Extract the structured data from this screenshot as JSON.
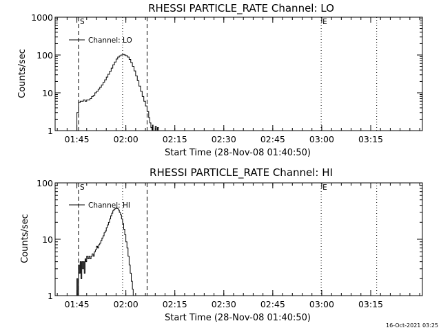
{
  "footer_timestamp": "16-Oct-2021 03:25",
  "chart_data": [
    {
      "type": "line",
      "title": "RHESSI PARTICLE_RATE Channel: LO",
      "xlabel": "Start Time (28-Nov-08 01:40:50)",
      "ylabel": "Counts/sec",
      "yscale": "log",
      "ylim": [
        1,
        1000
      ],
      "yticks": [
        "1",
        "10",
        "100",
        "1000"
      ],
      "xlim_minutes": [
        -2.5,
        110.0
      ],
      "xticks": [
        "01:45",
        "02:00",
        "02:15",
        "02:30",
        "02:45",
        "03:00",
        "03:15"
      ],
      "legend": "Channel: LO",
      "markers": [
        {
          "label": "S",
          "time": "01:45:30",
          "style": "dashed"
        },
        {
          "label": "",
          "time": "02:06:30",
          "style": "dashed"
        },
        {
          "label": "",
          "time": "01:59:00",
          "style": "dotted"
        },
        {
          "label": "E",
          "time": "02:59:50",
          "style": "dotted"
        },
        {
          "label": "",
          "time": "03:16:50",
          "style": "dotted"
        }
      ],
      "series": [
        {
          "name": "Channel: LO",
          "x": [
            "01:44:45",
            "01:45:00",
            "01:45:30",
            "01:46:00",
            "01:46:30",
            "01:47:00",
            "01:47:30",
            "01:48:00",
            "01:48:30",
            "01:49:00",
            "01:49:30",
            "01:50:00",
            "01:50:30",
            "01:51:00",
            "01:51:30",
            "01:52:00",
            "01:52:30",
            "01:53:00",
            "01:53:30",
            "01:54:00",
            "01:54:30",
            "01:55:00",
            "01:55:30",
            "01:56:00",
            "01:56:30",
            "01:57:00",
            "01:57:30",
            "01:58:00",
            "01:58:30",
            "01:59:00",
            "01:59:30",
            "02:00:00",
            "02:00:30",
            "02:01:00",
            "02:01:30",
            "02:02:00",
            "02:02:30",
            "02:03:00",
            "02:03:30",
            "02:04:00",
            "02:04:30",
            "02:05:00",
            "02:05:30",
            "02:06:00",
            "02:06:30",
            "02:07:00",
            "02:07:20",
            "02:07:40",
            "02:08:00",
            "02:08:10",
            "02:08:20",
            "02:08:40",
            "02:09:00",
            "02:09:20",
            "02:09:40",
            "02:10:00"
          ],
          "y": [
            1.0,
            3.0,
            5.5,
            6.0,
            6.0,
            6.5,
            6.0,
            6.5,
            6.5,
            7.0,
            8.0,
            8.5,
            10,
            11,
            12.5,
            14,
            16,
            19,
            22,
            26,
            31,
            37,
            45,
            55,
            65,
            78,
            88,
            95,
            100,
            103,
            100,
            96,
            88,
            76,
            63,
            50,
            38,
            28,
            21,
            15,
            11,
            8,
            6,
            4.5,
            3.2,
            2.2,
            1.6,
            1.2,
            1.0,
            1.4,
            1.0,
            1.0,
            1.3,
            1.0,
            1.2,
            1.0
          ]
        }
      ]
    },
    {
      "type": "line",
      "title": "RHESSI PARTICLE_RATE Channel: HI",
      "xlabel": "Start Time (28-Nov-08 01:40:50)",
      "ylabel": "Counts/sec",
      "yscale": "log",
      "ylim": [
        1,
        100
      ],
      "yticks": [
        "1",
        "10",
        "100"
      ],
      "xlim_minutes": [
        -2.5,
        110.0
      ],
      "xticks": [
        "01:45",
        "02:00",
        "02:15",
        "02:30",
        "02:45",
        "03:00",
        "03:15"
      ],
      "legend": "Channel: HI",
      "markers": [
        {
          "label": "S",
          "time": "01:45:30",
          "style": "dashed"
        },
        {
          "label": "",
          "time": "02:06:30",
          "style": "dashed"
        },
        {
          "label": "",
          "time": "01:59:00",
          "style": "dotted"
        },
        {
          "label": "E",
          "time": "02:59:50",
          "style": "dotted"
        },
        {
          "label": "",
          "time": "03:16:50",
          "style": "dotted"
        }
      ],
      "series": [
        {
          "name": "Channel: HI",
          "x": [
            "01:44:50",
            "01:45:00",
            "01:45:15",
            "01:45:30",
            "01:45:45",
            "01:46:00",
            "01:46:15",
            "01:46:30",
            "01:46:45",
            "01:47:00",
            "01:47:15",
            "01:47:30",
            "01:47:45",
            "01:48:00",
            "01:48:20",
            "01:48:40",
            "01:49:00",
            "01:49:20",
            "01:49:40",
            "01:50:00",
            "01:50:20",
            "01:50:40",
            "01:51:00",
            "01:51:20",
            "01:51:40",
            "01:52:00",
            "01:52:20",
            "01:52:40",
            "01:53:00",
            "01:53:20",
            "01:53:40",
            "01:54:00",
            "01:54:20",
            "01:54:40",
            "01:55:00",
            "01:55:20",
            "01:55:40",
            "01:56:00",
            "01:56:20",
            "01:56:40",
            "01:57:00",
            "01:57:20",
            "01:57:40",
            "01:58:00",
            "01:58:20",
            "01:58:40",
            "01:59:00",
            "01:59:20",
            "01:59:40",
            "02:00:00",
            "02:00:20",
            "02:00:40",
            "02:01:00",
            "02:01:20",
            "02:01:40",
            "02:02:00",
            "02:02:15"
          ],
          "y": [
            1.0,
            2.0,
            1.0,
            3.5,
            2.5,
            4.0,
            2.0,
            4.0,
            3.0,
            4.0,
            2.5,
            4.5,
            4.0,
            5.0,
            4.5,
            5.0,
            4.5,
            5.0,
            5.5,
            5.0,
            6.0,
            6.5,
            7.5,
            7.0,
            8.0,
            8.5,
            9.5,
            10.5,
            11.5,
            13,
            14,
            16,
            18,
            20,
            23,
            26,
            29,
            32,
            34,
            35,
            36,
            35,
            33,
            30,
            27,
            23,
            19,
            15,
            12,
            9,
            7,
            5,
            3.5,
            2.5,
            1.8,
            1.3,
            1.0
          ]
        }
      ]
    }
  ]
}
